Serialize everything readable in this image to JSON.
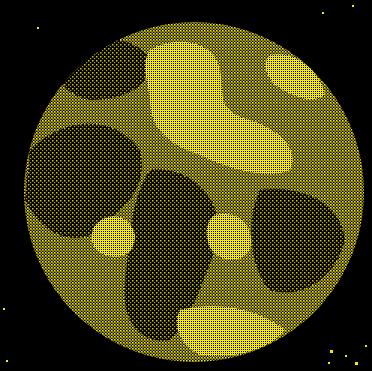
{
  "image": {
    "subject": "planet",
    "colors": {
      "background": "#000000",
      "dither": "#f7ea00",
      "dither_dim": "#b8aa00"
    }
  }
}
